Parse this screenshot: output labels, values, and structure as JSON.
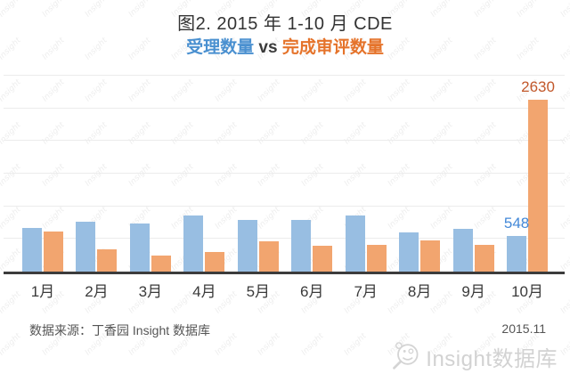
{
  "header": {
    "title": "图2. 2015 年 1-10 月 CDE",
    "subtitle": {
      "left": "受理数量",
      "vs": " vs ",
      "right": "完成审评数量"
    }
  },
  "chart_data": {
    "type": "bar",
    "title": "图2. 2015 年 1-10 月 CDE 受理数量 vs 完成审评数量",
    "categories": [
      "1月",
      "2月",
      "3月",
      "4月",
      "5月",
      "6月",
      "7月",
      "8月",
      "9月",
      "10月"
    ],
    "series": [
      {
        "name": "受理数量",
        "color": "#98bee2",
        "values": [
          670,
          760,
          730,
          865,
          795,
          785,
          855,
          595,
          655,
          548
        ]
      },
      {
        "name": "完成审评数量",
        "color": "#f2a56f",
        "values": [
          610,
          340,
          240,
          300,
          465,
          400,
          415,
          480,
          415,
          2630
        ]
      }
    ],
    "data_labels": [
      {
        "series": 0,
        "index": 9,
        "text": "548",
        "color": "#4489d8"
      },
      {
        "series": 1,
        "index": 9,
        "text": "2630",
        "color": "#c2582b"
      }
    ],
    "xlabel": "",
    "ylabel": "",
    "ylim": [
      0,
      3000
    ],
    "grid_step": 500,
    "grid": true,
    "legend_position": "none"
  },
  "footer": {
    "source": "数据来源：丁香园 Insight 数据库",
    "date": "2015.11"
  },
  "branding": {
    "text": "Insight数据库",
    "icon": "magnifier-smiley-icon"
  },
  "watermark": {
    "text": "Insight"
  }
}
